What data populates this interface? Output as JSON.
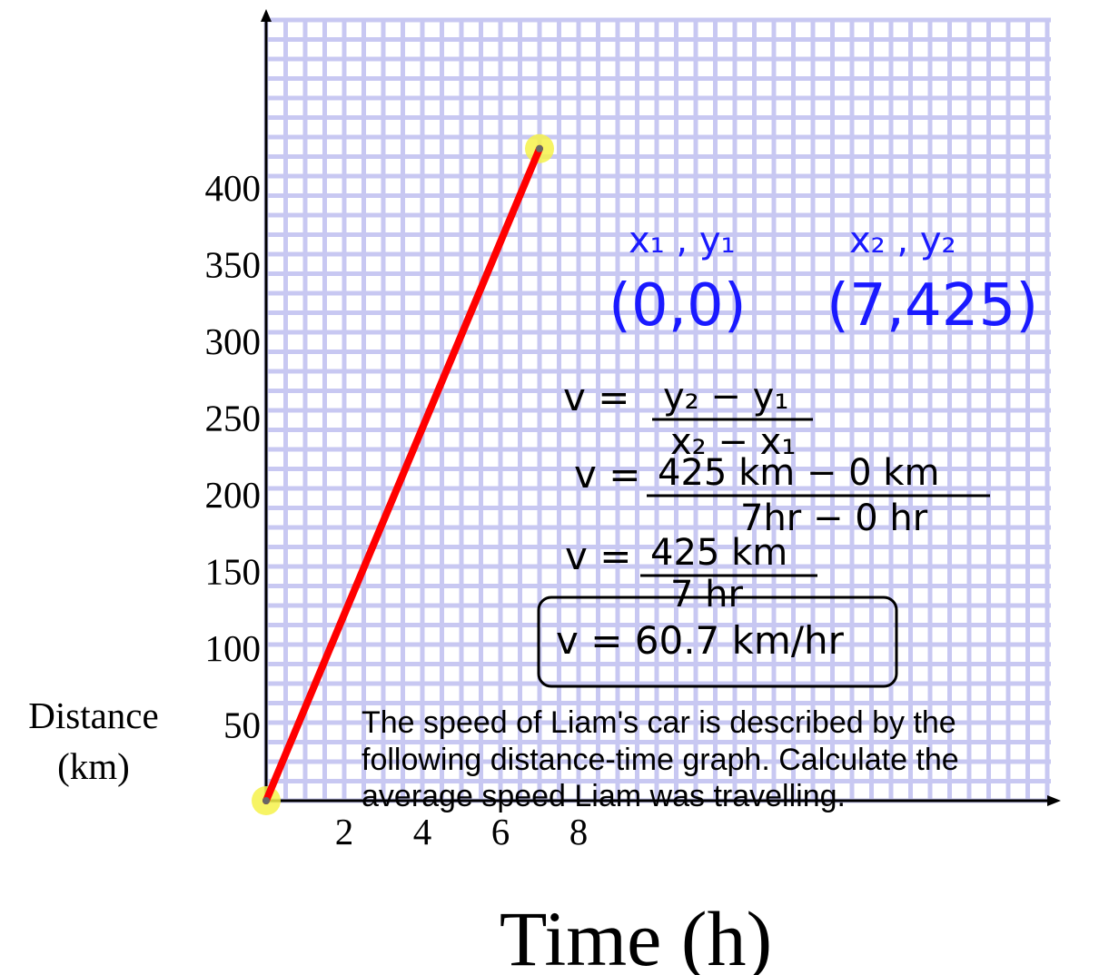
{
  "chart_data": {
    "type": "line",
    "title": "",
    "xlabel": "Time (h)",
    "ylabel": "Distance (km)",
    "x_ticks": [
      "2",
      "4",
      "6",
      "8"
    ],
    "y_ticks": [
      "50",
      "100",
      "150",
      "200",
      "250",
      "300",
      "350",
      "400"
    ],
    "grid": true,
    "series": [
      {
        "points": [
          {
            "x": 0,
            "y": 0
          },
          {
            "x": 7,
            "y": 425
          }
        ]
      }
    ],
    "highlighted_points": [
      {
        "x": 0,
        "y": 0
      },
      {
        "x": 7,
        "y": 425
      }
    ],
    "colors": {
      "line": "#ff0000",
      "grid": "#c8c8f2",
      "axes": "#000000",
      "notes": "#1a1aff",
      "highlight": "#f6f24a"
    }
  },
  "problem_text": [
    "The speed of Liam's car is described by the",
    "following distance-time graph.  Calculate the",
    "average speed Liam was travelling."
  ],
  "annotations": {
    "point1_label": "x₁ , y₁",
    "point2_label": "x₂ , y₂",
    "point1": "(0,0)",
    "point2": "(7,425)",
    "formula_lhs": "v =",
    "formula_num": "y₂ − y₁",
    "formula_den": "x₂ − x₁",
    "step2_lhs": "v =",
    "step2_num": "425 km − 0 km",
    "step2_den": "7hr − 0 hr",
    "step3_lhs": "v =",
    "step3_num": "425 km",
    "step3_den": "7 hr",
    "answer": "v = 60.7 km/hr"
  }
}
